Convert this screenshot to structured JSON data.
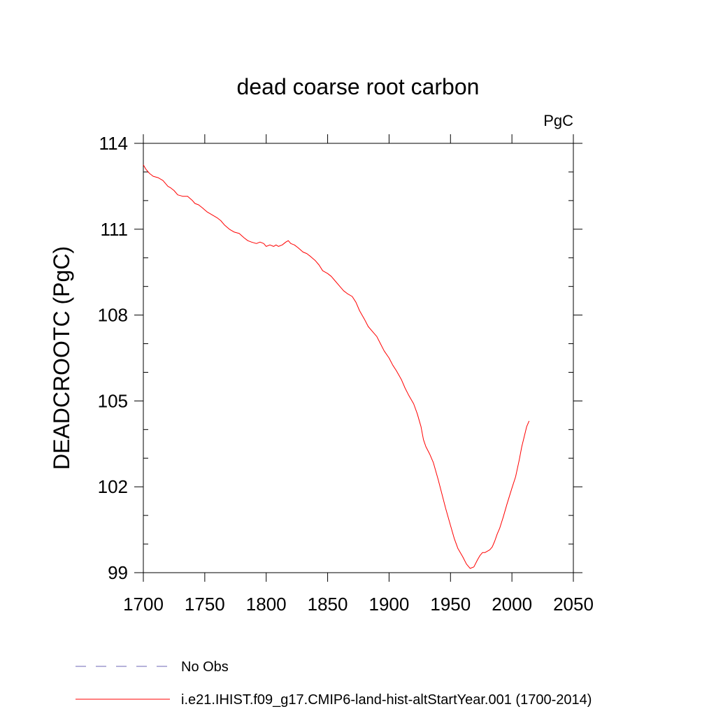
{
  "chart_data": {
    "type": "line",
    "title": "dead coarse root carbon",
    "units_label": "PgC",
    "xlabel": "",
    "ylabel": "DEADCROOTC  (PgC)",
    "xlim": [
      1700,
      2050
    ],
    "ylim": [
      99,
      114
    ],
    "xticks": [
      1700,
      1750,
      1800,
      1850,
      1900,
      1950,
      2000,
      2050
    ],
    "yticks": [
      99,
      102,
      105,
      108,
      111,
      114
    ],
    "x_minor_step": 50,
    "y_minor_step": 1,
    "grid": false,
    "legend_position": "bottom-left",
    "series": [
      {
        "name": "No Obs",
        "color": "#6e64b4",
        "dash": "dashed",
        "x": [],
        "y": []
      },
      {
        "name": "i.e21.IHIST.f09_g17.CMIP6-land-hist-altStartYear.001 (1700-2014)",
        "color": "#ff0000",
        "dash": "solid",
        "x": [
          1700,
          1702,
          1705,
          1708,
          1712,
          1716,
          1720,
          1722,
          1725,
          1728,
          1732,
          1736,
          1740,
          1742,
          1745,
          1748,
          1752,
          1756,
          1760,
          1763,
          1766,
          1770,
          1774,
          1778,
          1782,
          1785,
          1788,
          1792,
          1795,
          1798,
          1800,
          1803,
          1806,
          1808,
          1810,
          1813,
          1816,
          1818,
          1820,
          1823,
          1826,
          1830,
          1833,
          1836,
          1840,
          1843,
          1846,
          1850,
          1853,
          1856,
          1860,
          1863,
          1866,
          1870,
          1873,
          1876,
          1880,
          1883,
          1886,
          1890,
          1893,
          1896,
          1900,
          1903,
          1906,
          1910,
          1913,
          1916,
          1920,
          1923,
          1926,
          1928,
          1930,
          1933,
          1936,
          1940,
          1943,
          1946,
          1950,
          1953,
          1956,
          1960,
          1963,
          1966,
          1969,
          1972,
          1974,
          1976,
          1978,
          1980,
          1982,
          1984,
          1986,
          1988,
          1990,
          1993,
          1996,
          2000,
          2003,
          2006,
          2008,
          2010,
          2012,
          2014
        ],
        "y": [
          113.25,
          113.1,
          112.95,
          112.85,
          112.8,
          112.7,
          112.5,
          112.45,
          112.35,
          112.2,
          112.15,
          112.15,
          112.0,
          111.9,
          111.85,
          111.75,
          111.6,
          111.5,
          111.4,
          111.3,
          111.15,
          111.0,
          110.9,
          110.85,
          110.7,
          110.6,
          110.55,
          110.5,
          110.55,
          110.5,
          110.4,
          110.45,
          110.4,
          110.45,
          110.4,
          110.45,
          110.55,
          110.6,
          110.5,
          110.45,
          110.35,
          110.2,
          110.15,
          110.05,
          109.9,
          109.75,
          109.55,
          109.45,
          109.35,
          109.2,
          109.0,
          108.85,
          108.75,
          108.65,
          108.45,
          108.15,
          107.85,
          107.6,
          107.45,
          107.25,
          107.0,
          106.75,
          106.5,
          106.25,
          106.05,
          105.75,
          105.45,
          105.2,
          104.9,
          104.55,
          104.1,
          103.65,
          103.4,
          103.15,
          102.85,
          102.25,
          101.75,
          101.25,
          100.65,
          100.2,
          99.85,
          99.55,
          99.3,
          99.15,
          99.2,
          99.45,
          99.6,
          99.7,
          99.7,
          99.75,
          99.8,
          99.9,
          100.1,
          100.35,
          100.55,
          100.95,
          101.4,
          101.95,
          102.35,
          102.95,
          103.4,
          103.75,
          104.1,
          104.3
        ]
      }
    ]
  }
}
